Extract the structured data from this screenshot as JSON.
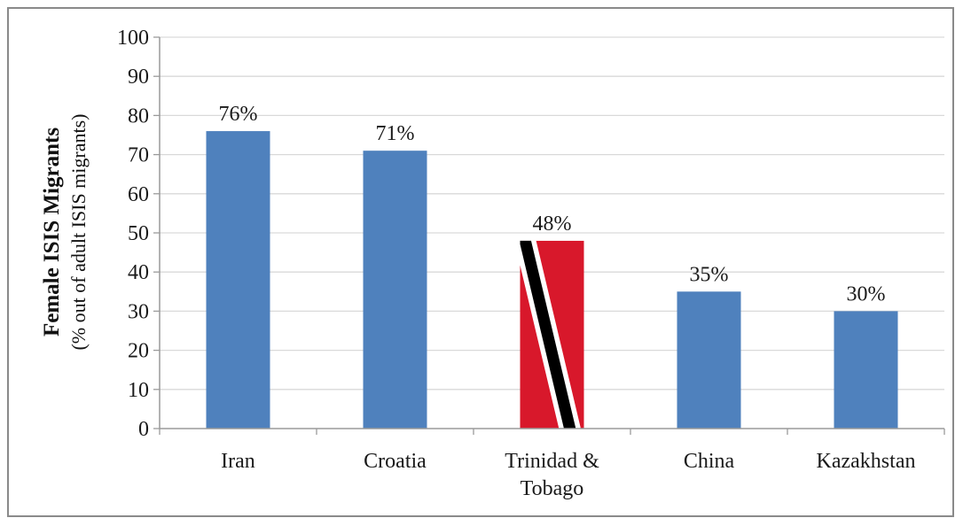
{
  "chart_data": {
    "type": "bar",
    "categories": [
      "Iran",
      "Croatia",
      "Trinidad & Tobago",
      "China",
      "Kazakhstan"
    ],
    "category_lines": [
      [
        "Iran"
      ],
      [
        "Croatia"
      ],
      [
        "Trinidad &",
        "Tobago"
      ],
      [
        "China"
      ],
      [
        "Kazakhstan"
      ]
    ],
    "values": [
      76,
      71,
      48,
      35,
      30
    ],
    "value_labels": [
      "76%",
      "71%",
      "48%",
      "35%",
      "30%"
    ],
    "ylabel": "Female ISIS Migrants",
    "ylabel_sub": "(% out of adult ISIS migrants)",
    "xlabel": "",
    "title": "",
    "ylim": [
      0,
      100
    ],
    "yticks": [
      0,
      10,
      20,
      30,
      40,
      50,
      60,
      70,
      80,
      90,
      100
    ],
    "grid": true,
    "legend": "none",
    "bar_fill": [
      "default",
      "default",
      "flag-trinidad-tobago",
      "default",
      "default"
    ],
    "colors": {
      "bar": "#4f81bd",
      "grid": "#d9d9d9",
      "axis": "#9a9a9a",
      "flag_red": "#d8182b",
      "flag_black": "#000000",
      "flag_white": "#ffffff",
      "frame": "#8a8a8a"
    }
  }
}
